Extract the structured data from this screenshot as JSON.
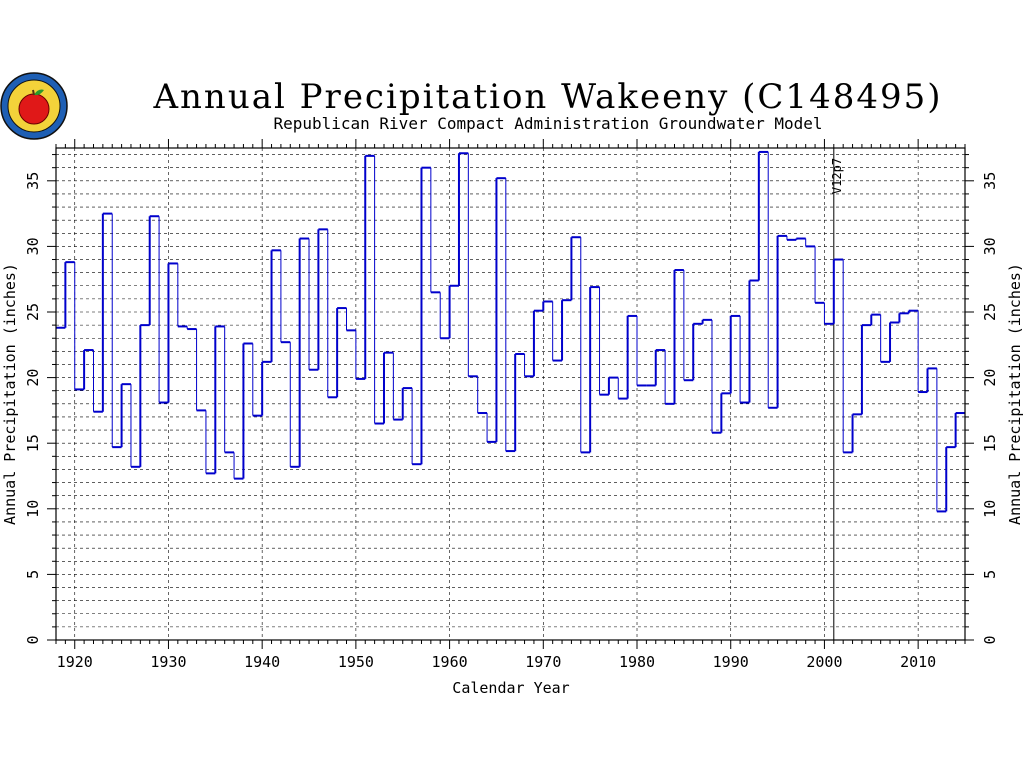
{
  "chart_data": {
    "type": "line",
    "step": true,
    "title": "Annual Precipitation Wakeeny (C148495)",
    "subtitle": "Republican River Compact Administration Groundwater Model",
    "xlabel": "Calendar Year",
    "ylabel": "Annual Precipitation (inches)",
    "ylabel_right": "Annual Precipitation (inches)",
    "xlim": [
      1918,
      2015
    ],
    "ylim": [
      0,
      37.5
    ],
    "x_ticks": [
      1920,
      1930,
      1940,
      1950,
      1960,
      1970,
      1980,
      1990,
      2000,
      2010
    ],
    "y_ticks": [
      0,
      5,
      10,
      15,
      20,
      25,
      30,
      35
    ],
    "grid": true,
    "line_color": "#0000cc",
    "marker": {
      "x": 2001,
      "label": "V12p7"
    },
    "x": [
      1918,
      1919,
      1920,
      1921,
      1922,
      1923,
      1924,
      1925,
      1926,
      1927,
      1928,
      1929,
      1930,
      1931,
      1932,
      1933,
      1934,
      1935,
      1936,
      1937,
      1938,
      1939,
      1940,
      1941,
      1942,
      1943,
      1944,
      1945,
      1946,
      1947,
      1948,
      1949,
      1950,
      1951,
      1952,
      1953,
      1954,
      1955,
      1956,
      1957,
      1958,
      1959,
      1960,
      1961,
      1962,
      1963,
      1964,
      1965,
      1966,
      1967,
      1968,
      1969,
      1970,
      1971,
      1972,
      1973,
      1974,
      1975,
      1976,
      1977,
      1978,
      1979,
      1980,
      1981,
      1982,
      1983,
      1984,
      1985,
      1986,
      1987,
      1988,
      1989,
      1990,
      1991,
      1992,
      1993,
      1994,
      1995,
      1996,
      1997,
      1998,
      1999,
      2000,
      2001,
      2002,
      2003,
      2004,
      2005,
      2006,
      2007,
      2008,
      2009,
      2010,
      2011,
      2012,
      2013,
      2014
    ],
    "values": [
      23.8,
      28.8,
      19.1,
      22.1,
      17.4,
      32.5,
      14.7,
      19.5,
      13.2,
      24.0,
      32.3,
      18.1,
      28.7,
      23.9,
      23.7,
      17.5,
      12.7,
      23.9,
      14.3,
      12.3,
      22.6,
      17.1,
      21.2,
      29.7,
      22.7,
      13.2,
      30.6,
      20.6,
      31.3,
      18.5,
      25.3,
      23.6,
      19.9,
      36.9,
      16.5,
      21.9,
      16.8,
      19.2,
      13.4,
      36.0,
      26.5,
      23.0,
      27.0,
      37.1,
      20.1,
      17.3,
      15.1,
      35.2,
      14.4,
      21.8,
      20.1,
      25.1,
      25.8,
      21.3,
      25.9,
      30.7,
      14.3,
      26.9,
      18.7,
      20.0,
      18.4,
      24.7,
      19.4,
      19.4,
      22.1,
      18.0,
      28.2,
      19.8,
      24.1,
      24.4,
      15.8,
      18.8,
      24.7,
      18.1,
      27.4,
      37.2,
      17.7,
      30.8,
      30.5,
      30.6,
      30.0,
      25.7,
      24.1,
      29.0,
      14.3,
      17.2,
      24.0,
      24.8,
      21.2,
      24.2,
      24.9,
      25.1,
      18.9,
      20.7,
      9.8,
      14.7,
      17.3
    ]
  }
}
